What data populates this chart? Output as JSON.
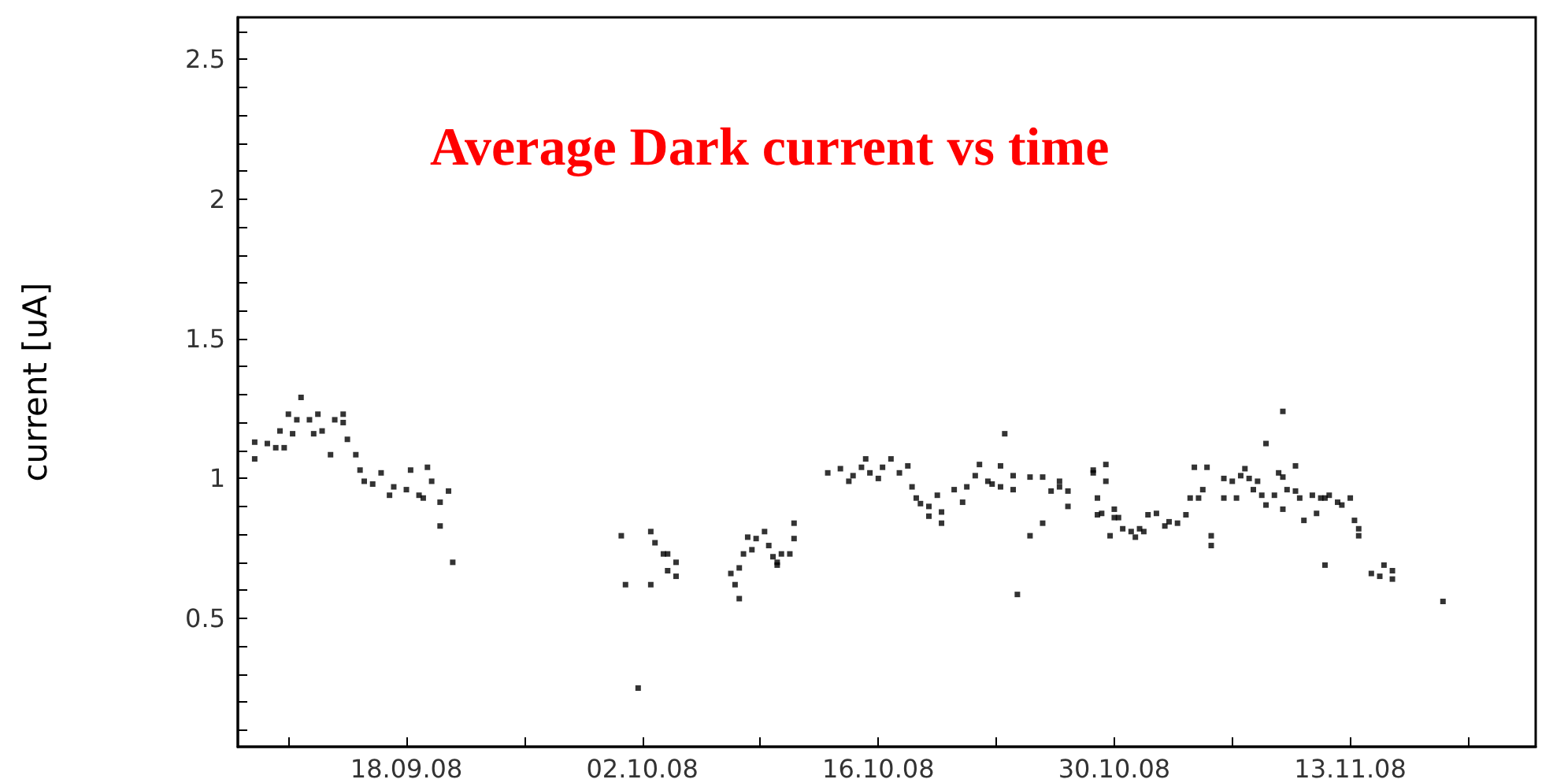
{
  "chart_data": {
    "type": "scatter",
    "title": "Average Dark current vs time",
    "ylabel": "current [uA]",
    "x": [
      "--09-09T00:00",
      "--09-09T00:00",
      "--09-09T18:00",
      "--09-10T06:00",
      "--09-10T18:00",
      "--09-10T12:00",
      "--09-11T00:00",
      "--09-11T06:00",
      "--09-11T12:00",
      "--09-11T18:00",
      "--09-12T06:00",
      "--09-12T12:00",
      "--09-12T18:00",
      "--09-13T00:00",
      "--09-13T12:00",
      "--09-13T18:00",
      "--09-14T06:00",
      "--09-14T06:00",
      "--09-14T12:00",
      "--09-15T00:00",
      "--09-15T06:00",
      "--09-15T12:00",
      "--09-16T00:00",
      "--09-16T12:00",
      "--09-17T00:00",
      "--09-17T06:00",
      "--09-18T00:00",
      "--09-18T06:00",
      "--09-18T18:00",
      "--09-19T00:00",
      "--09-19T06:00",
      "--09-19T12:00",
      "--09-20T00:00",
      "--09-20T00:00",
      "--09-20T12:00",
      "--09-20T18:00",
      "--09-30T18:00",
      "--10-01T00:00",
      "--10-02T12:00",
      "--10-02T12:00",
      "--10-02T18:00",
      "--10-03T06:00",
      "--10-03T12:00",
      "--10-04T00:00",
      "--10-03T12:00",
      "--10-04T00:00",
      "--10-01T18:00",
      "--10-07T06:00",
      "--10-07T12:00",
      "--10-07T18:00",
      "--10-07T18:00",
      "--10-08T00:00",
      "--10-08T12:00",
      "--10-08T06:00",
      "--10-08T18:00",
      "--10-09T06:00",
      "--10-09T12:00",
      "--10-09T18:00",
      "--10-10T00:00",
      "--10-10T06:00",
      "--10-10T18:00",
      "--10-11T00:00",
      "--10-11T00:00",
      "--10-10T00:00",
      "--10-13T00:00",
      "--10-13T18:00",
      "--10-14T06:00",
      "--10-14T12:00",
      "--10-15T06:00",
      "--10-15T00:00",
      "--10-15T12:00",
      "--10-16T00:00",
      "--10-16T06:00",
      "--10-16T18:00",
      "--10-17T06:00",
      "--10-17T18:00",
      "--10-18T00:00",
      "--10-18T06:00",
      "--10-18T12:00",
      "--10-19T00:00",
      "--10-19T00:00",
      "--10-19T12:00",
      "--10-19T18:00",
      "--10-19T18:00",
      "--10-20T12:00",
      "--10-21T00:00",
      "--10-21T06:00",
      "--10-21T18:00",
      "--10-22T00:00",
      "--10-22T12:00",
      "--10-22T18:00",
      "--10-23T06:00",
      "--10-23T06:00",
      "--10-23T12:00",
      "--10-24T00:00",
      "--10-24T00:00",
      "--10-24T06:00",
      "--10-25T00:00",
      "--10-25T00:00",
      "--10-25T18:00",
      "--10-25T18:00",
      "--10-26T06:00",
      "--10-26T18:00",
      "--10-26T18:00",
      "--10-27T06:00",
      "--10-27T06:00",
      "--10-28T18:00",
      "--10-28T18:00",
      "--10-29T00:00",
      "--10-29T00:00",
      "--10-29T06:00",
      "--10-29T12:00",
      "--10-29T12:00",
      "--10-29T18:00",
      "--10-30T00:00",
      "--10-30T00:00",
      "--10-30T06:00",
      "--10-30T12:00",
      "--10-31T00:00",
      "--10-31T06:00",
      "--10-31T12:00",
      "--10-31T18:00",
      "--11-01T00:00",
      "--11-01T12:00",
      "--11-02T00:00",
      "--11-02T06:00",
      "--11-02T18:00",
      "--11-03T06:00",
      "--11-03T12:00",
      "--11-03T18:00",
      "--11-04T00:00",
      "--11-04T06:00",
      "--11-04T12:00",
      "--11-04T18:00",
      "--11-04T18:00",
      "--11-05T12:00",
      "--11-05T12:00",
      "--11-06T00:00",
      "--11-06T06:00",
      "--11-06T12:00",
      "--11-06T18:00",
      "--11-07T00:00",
      "--11-07T06:00",
      "--11-07T12:00",
      "--11-07T18:00",
      "--11-08T00:00",
      "--11-08T00:00",
      "--11-08T12:00",
      "--11-08T18:00",
      "--11-09T00:00",
      "--11-09T00:00",
      "--11-09T00:00",
      "--11-09T06:00",
      "--11-09T18:00",
      "--11-09T18:00",
      "--11-10T00:00",
      "--11-10T06:00",
      "--11-10T18:00",
      "--11-11T00:00",
      "--11-11T06:00",
      "--11-11T12:00",
      "--11-11T12:00",
      "--11-11T18:00",
      "--11-12T06:00",
      "--11-12T12:00",
      "--11-13T00:00",
      "--11-13T06:00",
      "--11-13T12:00",
      "--11-13T12:00",
      "--11-14T06:00",
      "--11-14T18:00",
      "--11-15T00:00",
      "--11-15T12:00",
      "--11-15T12:00",
      "--11-18T12:00"
    ],
    "values": [
      1.13,
      1.07,
      1.125,
      1.11,
      1.11,
      1.17,
      1.23,
      1.16,
      1.21,
      1.29,
      1.21,
      1.16,
      1.23,
      1.17,
      1.085,
      1.21,
      1.23,
      1.2,
      1.14,
      1.085,
      1.03,
      0.99,
      0.98,
      1.02,
      0.94,
      0.97,
      0.96,
      1.03,
      0.94,
      0.93,
      1.04,
      0.99,
      0.83,
      0.915,
      0.955,
      0.7,
      0.795,
      0.62,
      0.81,
      0.62,
      0.77,
      0.73,
      0.73,
      0.7,
      0.67,
      0.65,
      0.25,
      0.66,
      0.62,
      0.57,
      0.68,
      0.73,
      0.745,
      0.79,
      0.785,
      0.81,
      0.76,
      0.72,
      0.7,
      0.73,
      0.73,
      0.785,
      0.84,
      0.69,
      1.02,
      1.035,
      0.99,
      1.01,
      1.07,
      1.04,
      1.02,
      1.0,
      1.04,
      1.07,
      1.02,
      1.045,
      0.97,
      0.93,
      0.91,
      0.9,
      0.865,
      0.94,
      0.88,
      0.84,
      0.96,
      0.915,
      0.97,
      1.01,
      1.05,
      0.99,
      0.98,
      1.045,
      0.97,
      1.16,
      1.01,
      0.96,
      0.585,
      1.005,
      0.795,
      1.005,
      0.84,
      0.955,
      0.97,
      0.99,
      0.955,
      0.9,
      1.02,
      1.03,
      0.93,
      0.87,
      0.875,
      0.99,
      1.05,
      0.795,
      0.89,
      0.86,
      0.86,
      0.82,
      0.81,
      0.79,
      0.82,
      0.81,
      0.87,
      0.875,
      0.83,
      0.845,
      0.84,
      0.87,
      0.93,
      1.04,
      0.93,
      0.96,
      1.04,
      0.795,
      0.76,
      0.93,
      1.0,
      0.99,
      0.93,
      1.01,
      1.035,
      1.0,
      0.96,
      0.99,
      0.94,
      1.125,
      0.905,
      0.94,
      1.02,
      1.24,
      1.005,
      0.89,
      0.96,
      1.045,
      0.955,
      0.93,
      0.85,
      0.94,
      0.875,
      0.93,
      0.69,
      0.93,
      0.94,
      0.915,
      0.905,
      0.93,
      0.85,
      0.82,
      0.795,
      0.66,
      0.65,
      0.69,
      0.64,
      0.67,
      0.56
    ],
    "color": "#000000",
    "marker": "square",
    "grid": false,
    "xlim": [
      "--09-08",
      "--11-24"
    ],
    "xticks": [
      {
        "value": "--09-11",
        "label": null
      },
      {
        "value": "--09-18",
        "label": "18.09.08"
      },
      {
        "value": "--09-25",
        "label": null
      },
      {
        "value": "--10-02",
        "label": "02.10.08"
      },
      {
        "value": "--10-09",
        "label": null
      },
      {
        "value": "--10-16",
        "label": "16.10.08"
      },
      {
        "value": "--10-23",
        "label": null
      },
      {
        "value": "--10-30",
        "label": "30.10.08"
      },
      {
        "value": "--11-06",
        "label": null
      },
      {
        "value": "--11-13",
        "label": "13.11.08"
      },
      {
        "value": "--11-20",
        "label": null
      }
    ],
    "ylim": [
      0.04,
      2.65
    ],
    "yticks": [
      {
        "value": 0.1,
        "label": null
      },
      {
        "value": 0.2,
        "label": null
      },
      {
        "value": 0.3,
        "label": null
      },
      {
        "value": 0.4,
        "label": null
      },
      0.5,
      {
        "value": 0.6,
        "label": null
      },
      {
        "value": 0.7,
        "label": null
      },
      {
        "value": 0.8,
        "label": null
      },
      {
        "value": 0.9,
        "label": null
      },
      1,
      {
        "value": 1.1,
        "label": null
      },
      {
        "value": 1.2,
        "label": null
      },
      {
        "value": 1.3,
        "label": null
      },
      {
        "value": 1.4,
        "label": null
      },
      1.5,
      {
        "value": 1.6,
        "label": null
      },
      {
        "value": 1.7,
        "label": null
      },
      {
        "value": 1.8,
        "label": null
      },
      {
        "value": 1.9,
        "label": null
      },
      2,
      {
        "value": 2.1,
        "label": null
      },
      {
        "value": 2.2,
        "label": null
      },
      {
        "value": 2.3,
        "label": null
      },
      {
        "value": 2.4,
        "label": null
      },
      2.5,
      {
        "value": 2.6,
        "label": null
      }
    ]
  }
}
